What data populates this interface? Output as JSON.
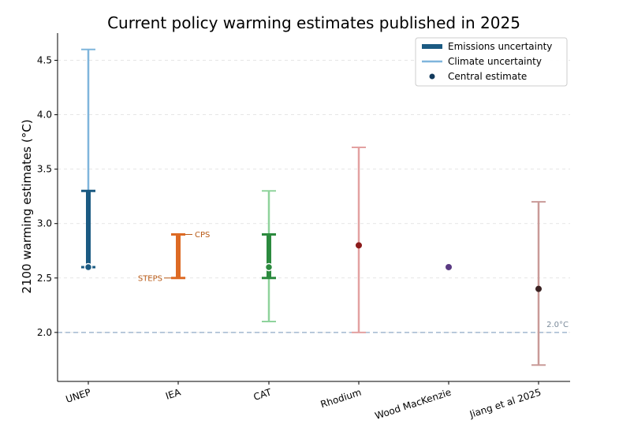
{
  "chart_data": {
    "type": "errorbar",
    "title": "Current policy warming estimates published in 2025",
    "xlabel": "",
    "ylabel": "2100 warming estimates (°C)",
    "ylim": [
      1.55,
      4.75
    ],
    "yticks": [
      2.0,
      2.5,
      3.0,
      3.5,
      4.0,
      4.5
    ],
    "ytick_labels": [
      "2.0",
      "2.5",
      "3.0",
      "3.5",
      "4.0",
      "4.5"
    ],
    "grid": "horizontal dashed",
    "legend": {
      "placement": "top-right",
      "entries": [
        {
          "label": "Emissions uncertainty",
          "kind": "thick-line",
          "color": "#1b5a82"
        },
        {
          "label": "Climate uncertainty",
          "kind": "thin-line",
          "color": "#7fb5dc"
        },
        {
          "label": "Central estimate",
          "kind": "dot",
          "color": "#123a5c"
        }
      ]
    },
    "reference_line": {
      "value": 2.0,
      "label": "2.0°C",
      "color": "#8fa8c6"
    },
    "categories": [
      "UNEP",
      "IEA",
      "CAT",
      "Rhodium",
      "Wood MacKenzie",
      "Jiang et al 2025"
    ],
    "series": [
      {
        "name": "UNEP",
        "central": 2.6,
        "emissions_range": [
          2.6,
          3.3
        ],
        "climate_range": [
          2.6,
          4.6
        ],
        "color_emissions": "#1b5a82",
        "color_climate": "#7fb5dc",
        "color_central": "#1b5a82",
        "central_style": "white-edge"
      },
      {
        "name": "IEA",
        "central": null,
        "emissions_range": [
          2.5,
          2.9
        ],
        "climate_range": null,
        "color_emissions": "#dd6a24",
        "color_climate": null,
        "color_central": null,
        "annotations": [
          {
            "text": "CPS",
            "value": 2.9,
            "side": "right"
          },
          {
            "text": "STEPS",
            "value": 2.5,
            "side": "left"
          }
        ],
        "annotation_color": "#b85a16"
      },
      {
        "name": "CAT",
        "central": 2.6,
        "emissions_range": [
          2.5,
          2.9
        ],
        "climate_range": [
          2.1,
          3.3
        ],
        "color_emissions": "#2b8a3e",
        "color_climate": "#8fd39c",
        "color_central": "#2b8a3e",
        "central_style": "white-edge"
      },
      {
        "name": "Rhodium",
        "central": 2.8,
        "emissions_range": null,
        "climate_range": [
          2.0,
          3.7
        ],
        "color_emissions": null,
        "color_climate": "#e3a1a1",
        "color_central": "#8b1a1a",
        "central_style": "solid"
      },
      {
        "name": "Wood MacKenzie",
        "central": 2.6,
        "emissions_range": null,
        "climate_range": null,
        "color_emissions": null,
        "color_climate": null,
        "color_central": "#5a3a82",
        "central_style": "solid"
      },
      {
        "name": "Jiang et al 2025",
        "central": 2.4,
        "emissions_range": null,
        "climate_range": [
          1.7,
          3.2
        ],
        "color_emissions": null,
        "color_climate": "#c99a98",
        "color_central": "#3a2222",
        "central_style": "solid"
      }
    ]
  }
}
